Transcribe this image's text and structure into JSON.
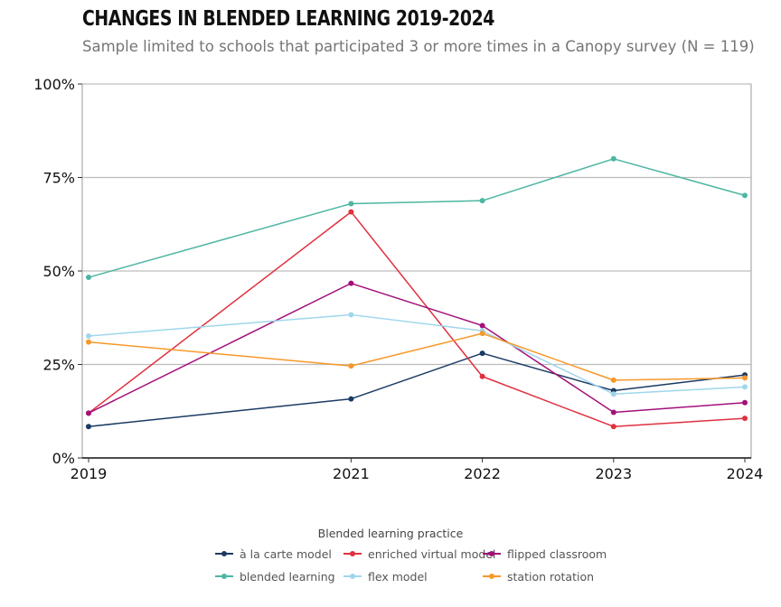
{
  "title": "Changes in Blended Learning 2019-2024",
  "subtitle": "Sample limited to schools that participated 3 or more times in a Canopy survey (N = 119)",
  "chart_data": {
    "type": "line",
    "title": "Changes in Blended Learning 2019-2024",
    "subtitle": "Sample limited to schools that participated 3 or more times in a Canopy survey (N = 119)",
    "xlabel": "",
    "ylabel": "",
    "x": [
      2019,
      2021,
      2022,
      2023,
      2024
    ],
    "x_tick_labels": [
      "2019",
      "2021",
      "2022",
      "2023",
      "2024"
    ],
    "ylim": [
      0,
      100
    ],
    "y_ticks": [
      0,
      25,
      50,
      75,
      100
    ],
    "y_tick_labels": [
      "0%",
      "25%",
      "50%",
      "75%",
      "100%"
    ],
    "grid": "horizontal",
    "legend_title": "Blended learning practice",
    "legend_position": "bottom",
    "series": [
      {
        "name": "à la carte model",
        "color": "#1a3a63",
        "values": [
          8.4,
          15.8,
          28.0,
          18.0,
          22.2
        ]
      },
      {
        "name": "enriched virtual model",
        "color": "#e0303f",
        "values": [
          12.0,
          65.8,
          21.8,
          8.4,
          10.6
        ]
      },
      {
        "name": "flipped classroom",
        "color": "#a3107a",
        "values": [
          12.0,
          46.7,
          35.4,
          12.2,
          14.8
        ]
      },
      {
        "name": "blended learning",
        "color": "#4db6a2",
        "values": [
          48.3,
          68.0,
          68.8,
          80.0,
          70.2
        ]
      },
      {
        "name": "flex model",
        "color": "#9fd6ec",
        "values": [
          32.6,
          38.3,
          34.0,
          17.1,
          19.0
        ]
      },
      {
        "name": "station rotation",
        "color": "#f7982a",
        "values": [
          31.0,
          24.6,
          33.3,
          20.8,
          21.4
        ]
      }
    ]
  }
}
